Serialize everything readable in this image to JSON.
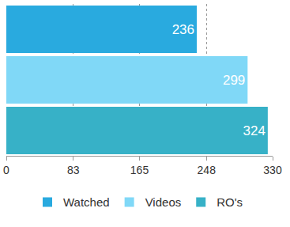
{
  "chart_data": {
    "type": "bar",
    "orientation": "horizontal",
    "categories": [
      null,
      null,
      null
    ],
    "series": [
      {
        "name": "Watched",
        "color": "#29aadf",
        "values": [
          236,
          null,
          null
        ]
      },
      {
        "name": "Videos",
        "color": "#80d8f7",
        "values": [
          null,
          299,
          null
        ]
      },
      {
        "name": "RO's",
        "color": "#37b1c7",
        "values": [
          null,
          null,
          324
        ]
      }
    ],
    "xlim": [
      0,
      330
    ],
    "xticks": [
      0,
      83,
      165,
      248,
      330
    ],
    "grid": true,
    "legend": "bottom",
    "data_labels": true,
    "tick_labels": "x"
  }
}
